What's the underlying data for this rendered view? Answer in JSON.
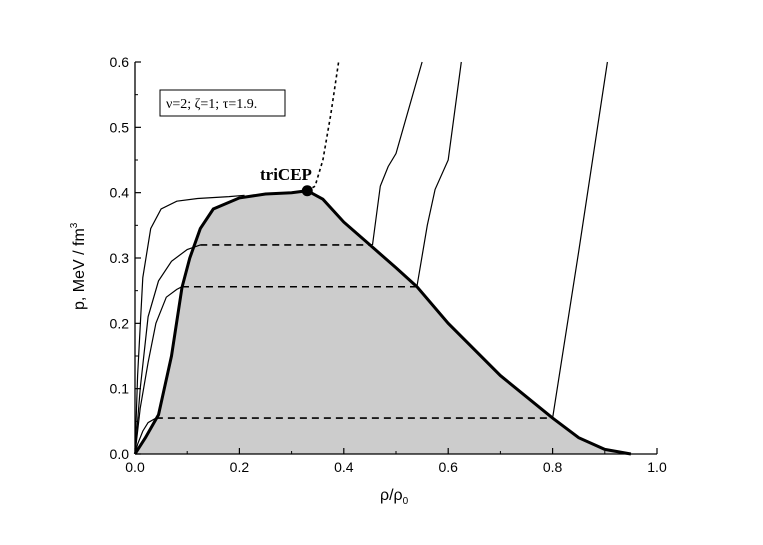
{
  "chart_data": {
    "type": "line",
    "xlabel": "ρ/ρ",
    "xlabel_sub": "0",
    "ylabel": "p, MeV / fm",
    "ylabel_sup": "3",
    "xlim": [
      0.0,
      1.0
    ],
    "ylim": [
      0.0,
      0.6
    ],
    "x_ticks": [
      "0.0",
      "0.2",
      "0.4",
      "0.6",
      "0.8",
      "1.0"
    ],
    "y_ticks": [
      "0.0",
      "0.1",
      "0.2",
      "0.3",
      "0.4",
      "0.5",
      "0.6"
    ],
    "parameters_note": "ν=2; ζ=1; τ=1.9.",
    "annotation": "triCEP",
    "tricep_point": {
      "x": 0.33,
      "y": 0.403
    },
    "shaded_region": {
      "fill": "#cccccc",
      "boundary": [
        [
          0.0,
          0.0
        ],
        [
          0.02,
          0.025
        ],
        [
          0.045,
          0.06
        ],
        [
          0.07,
          0.15
        ],
        [
          0.09,
          0.255
        ],
        [
          0.105,
          0.3
        ],
        [
          0.125,
          0.345
        ],
        [
          0.15,
          0.375
        ],
        [
          0.2,
          0.392
        ],
        [
          0.25,
          0.398
        ],
        [
          0.3,
          0.4
        ],
        [
          0.33,
          0.403
        ],
        [
          0.36,
          0.39
        ],
        [
          0.4,
          0.355
        ],
        [
          0.45,
          0.32
        ],
        [
          0.5,
          0.285
        ],
        [
          0.54,
          0.256
        ],
        [
          0.6,
          0.2
        ],
        [
          0.7,
          0.12
        ],
        [
          0.8,
          0.055
        ],
        [
          0.85,
          0.025
        ],
        [
          0.9,
          0.007
        ],
        [
          0.95,
          0.0
        ],
        [
          1.0,
          0.0
        ]
      ]
    },
    "coexistence_lines": [
      {
        "y": 0.32,
        "x_from": 0.125,
        "x_to": 0.455
      },
      {
        "y": 0.256,
        "x_from": 0.09,
        "x_to": 0.54
      },
      {
        "y": 0.055,
        "x_from": 0.04,
        "x_to": 0.8
      }
    ],
    "isotherms": [
      {
        "points": [
          [
            0.0,
            0.0
          ],
          [
            0.005,
            0.12
          ],
          [
            0.015,
            0.27
          ],
          [
            0.03,
            0.345
          ],
          [
            0.05,
            0.375
          ],
          [
            0.08,
            0.387
          ],
          [
            0.12,
            0.391
          ],
          [
            0.18,
            0.394
          ],
          [
            0.21,
            0.396
          ]
        ]
      },
      {
        "points": [
          [
            0.0,
            0.0
          ],
          [
            0.01,
            0.1
          ],
          [
            0.025,
            0.21
          ],
          [
            0.045,
            0.265
          ],
          [
            0.07,
            0.295
          ],
          [
            0.1,
            0.313
          ],
          [
            0.125,
            0.32
          ]
        ]
      },
      {
        "points": [
          [
            0.0,
            0.0
          ],
          [
            0.01,
            0.07
          ],
          [
            0.025,
            0.14
          ],
          [
            0.04,
            0.2
          ],
          [
            0.06,
            0.24
          ],
          [
            0.08,
            0.252
          ],
          [
            0.09,
            0.256
          ]
        ]
      },
      {
        "points": [
          [
            0.0,
            0.0
          ],
          [
            0.005,
            0.015
          ],
          [
            0.015,
            0.035
          ],
          [
            0.025,
            0.048
          ],
          [
            0.04,
            0.055
          ]
        ]
      },
      {
        "points": [
          [
            0.455,
            0.32
          ],
          [
            0.47,
            0.41
          ],
          [
            0.485,
            0.44
          ],
          [
            0.5,
            0.46
          ],
          [
            0.55,
            0.6
          ]
        ]
      },
      {
        "points": [
          [
            0.54,
            0.256
          ],
          [
            0.56,
            0.35
          ],
          [
            0.575,
            0.405
          ],
          [
            0.6,
            0.45
          ],
          [
            0.625,
            0.6
          ]
        ]
      },
      {
        "points": [
          [
            0.8,
            0.055
          ],
          [
            0.85,
            0.31
          ],
          [
            0.905,
            0.6
          ]
        ]
      }
    ],
    "critical_curve": {
      "style": "dotted",
      "points": [
        [
          0.33,
          0.403
        ],
        [
          0.345,
          0.41
        ],
        [
          0.36,
          0.45
        ],
        [
          0.375,
          0.52
        ],
        [
          0.39,
          0.6
        ]
      ]
    }
  }
}
